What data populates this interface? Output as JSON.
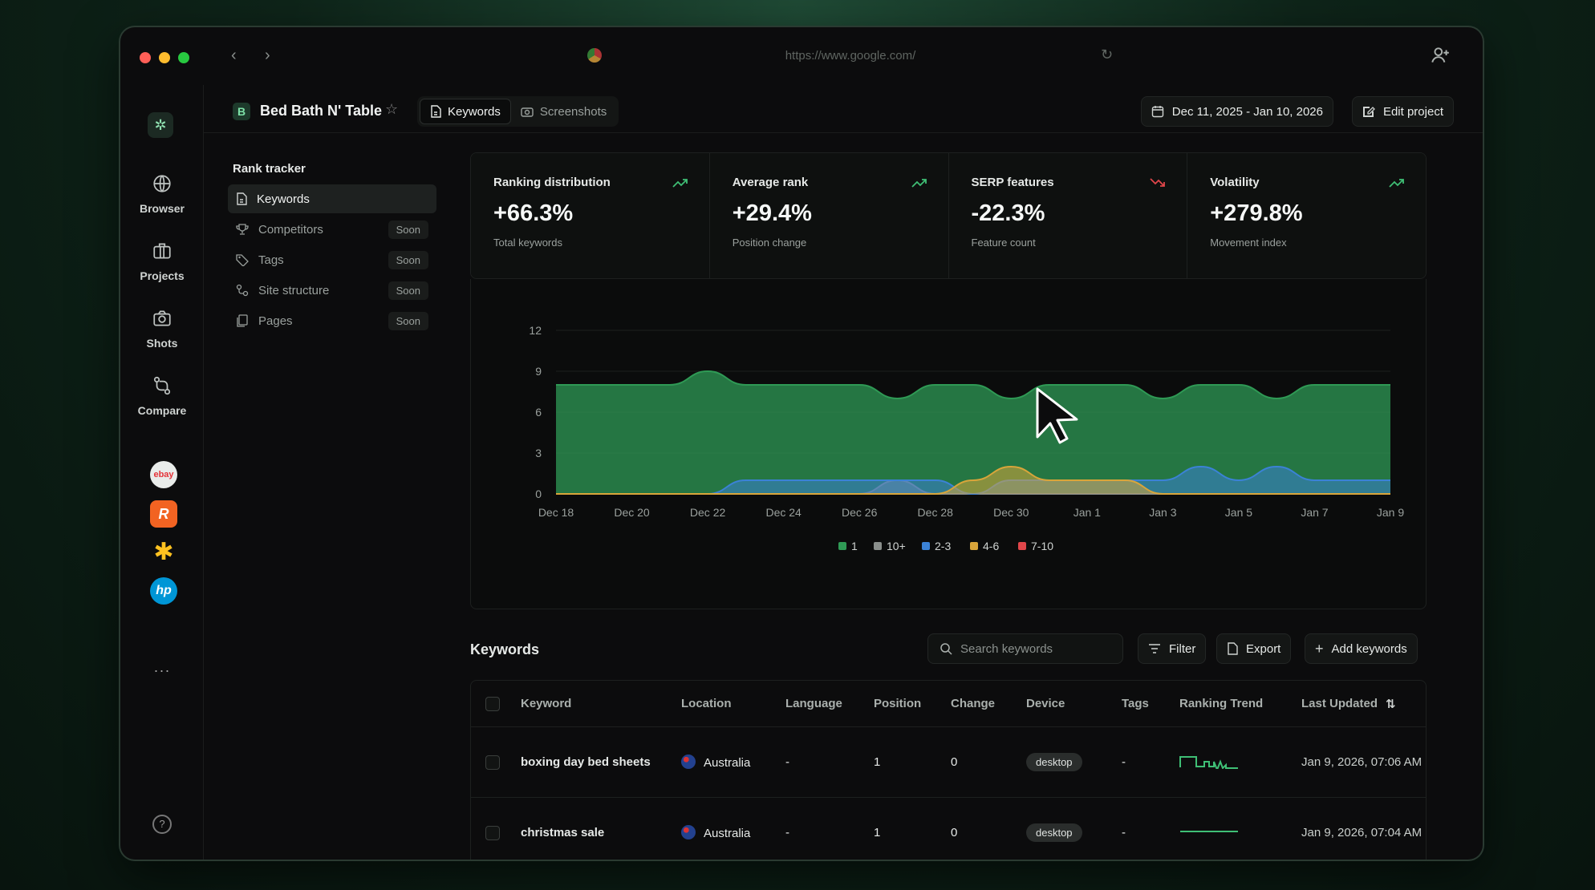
{
  "browser": {
    "url": "https://www.google.com/"
  },
  "sidebar": {
    "items": [
      {
        "label": "Browser",
        "icon": "globe-icon"
      },
      {
        "label": "Projects",
        "icon": "briefcase-icon"
      },
      {
        "label": "Shots",
        "icon": "camera-icon"
      },
      {
        "label": "Compare",
        "icon": "compare-icon"
      }
    ],
    "favorites": [
      {
        "name": "ebay",
        "label": "ebay"
      },
      {
        "name": "r-app",
        "label": "R"
      },
      {
        "name": "walmart",
        "label": "✱"
      },
      {
        "name": "hp",
        "label": "hp"
      }
    ],
    "more": "···",
    "help": "?"
  },
  "header": {
    "project_badge": "B",
    "project_name": "Bed Bath N' Table",
    "tabs": [
      {
        "label": "Keywords",
        "active": true
      },
      {
        "label": "Screenshots",
        "active": false
      }
    ],
    "date_range": "Dec 11, 2025 - Jan 10, 2026",
    "edit_label": "Edit project"
  },
  "leftnav": {
    "title": "Rank tracker",
    "items": [
      {
        "label": "Keywords",
        "active": true,
        "badge": ""
      },
      {
        "label": "Competitors",
        "active": false,
        "badge": "Soon"
      },
      {
        "label": "Tags",
        "active": false,
        "badge": "Soon"
      },
      {
        "label": "Site structure",
        "active": false,
        "badge": "Soon"
      },
      {
        "label": "Pages",
        "active": false,
        "badge": "Soon"
      }
    ]
  },
  "stats": [
    {
      "title": "Ranking distribution",
      "value": "+66.3%",
      "sub": "Total keywords",
      "trend": "up",
      "color": "#3fbf75"
    },
    {
      "title": "Average rank",
      "value": "+29.4%",
      "sub": "Position change",
      "trend": "up",
      "color": "#3fbf75"
    },
    {
      "title": "SERP features",
      "value": "-22.3%",
      "sub": "Feature count",
      "trend": "down",
      "color": "#e0464a"
    },
    {
      "title": "Volatility",
      "value": "+279.8%",
      "sub": "Movement index",
      "trend": "up",
      "color": "#3fbf75"
    }
  ],
  "chart_data": {
    "type": "area",
    "x": [
      "Dec 18",
      "Dec 19",
      "Dec 20",
      "Dec 21",
      "Dec 22",
      "Dec 23",
      "Dec 24",
      "Dec 25",
      "Dec 26",
      "Dec 27",
      "Dec 28",
      "Dec 29",
      "Dec 30",
      "Dec 31",
      "Jan 1",
      "Jan 2",
      "Jan 3",
      "Jan 4",
      "Jan 5",
      "Jan 6",
      "Jan 7",
      "Jan 8",
      "Jan 9"
    ],
    "xticks": [
      "Dec 18",
      "Dec 20",
      "Dec 22",
      "Dec 24",
      "Dec 26",
      "Dec 28",
      "Dec 30",
      "Jan 1",
      "Jan 3",
      "Jan 5",
      "Jan 7",
      "Jan 9"
    ],
    "yticks": [
      0,
      3,
      6,
      9,
      12
    ],
    "ylim": [
      0,
      12
    ],
    "series": [
      {
        "name": "1",
        "color": "#2f9a55",
        "values": [
          8,
          8,
          8,
          8,
          9,
          8,
          8,
          8,
          8,
          7,
          8,
          8,
          7,
          8,
          8,
          8,
          7,
          8,
          8,
          7,
          8,
          8,
          8
        ]
      },
      {
        "name": "10+",
        "color": "#8a8f8c",
        "values": [
          0,
          0,
          0,
          0,
          0,
          0,
          0,
          0,
          0,
          1,
          0,
          0,
          0,
          0,
          0,
          0,
          0,
          0,
          0,
          0,
          0,
          0,
          0
        ]
      },
      {
        "name": "2-3",
        "color": "#3b82d6",
        "values": [
          0,
          0,
          0,
          0,
          0,
          1,
          1,
          1,
          1,
          1,
          1,
          0,
          1,
          1,
          1,
          1,
          1,
          2,
          1,
          2,
          1,
          1,
          1
        ]
      },
      {
        "name": "4-6",
        "color": "#d9a53a",
        "values": [
          0,
          0,
          0,
          0,
          0,
          0,
          0,
          0,
          0,
          0,
          0,
          1,
          2,
          1,
          1,
          1,
          0,
          0,
          0,
          0,
          0,
          0,
          0
        ]
      },
      {
        "name": "7-10",
        "color": "#e0464a",
        "values": [
          0,
          0,
          0,
          0,
          0,
          0,
          0,
          0,
          0,
          0,
          0,
          0,
          0,
          0,
          0,
          0,
          0,
          0,
          0,
          0,
          0,
          0,
          0
        ]
      }
    ]
  },
  "keywords": {
    "title": "Keywords",
    "search_placeholder": "Search keywords",
    "filter_label": "Filter",
    "export_label": "Export",
    "add_label": "Add keywords",
    "columns": [
      "Keyword",
      "Location",
      "Language",
      "Position",
      "Change",
      "Device",
      "Tags",
      "Ranking Trend",
      "Last Updated"
    ],
    "rows": [
      {
        "keyword": "boxing day bed sheets",
        "location": "Australia",
        "language": "-",
        "position": "1",
        "change": "0",
        "device": "desktop",
        "tags": "-",
        "updated": "Jan 9, 2026, 07:06 AM",
        "trend": "varied"
      },
      {
        "keyword": "christmas sale",
        "location": "Australia",
        "language": "-",
        "position": "1",
        "change": "0",
        "device": "desktop",
        "tags": "-",
        "updated": "Jan 9, 2026, 07:04 AM",
        "trend": "flat"
      }
    ]
  }
}
